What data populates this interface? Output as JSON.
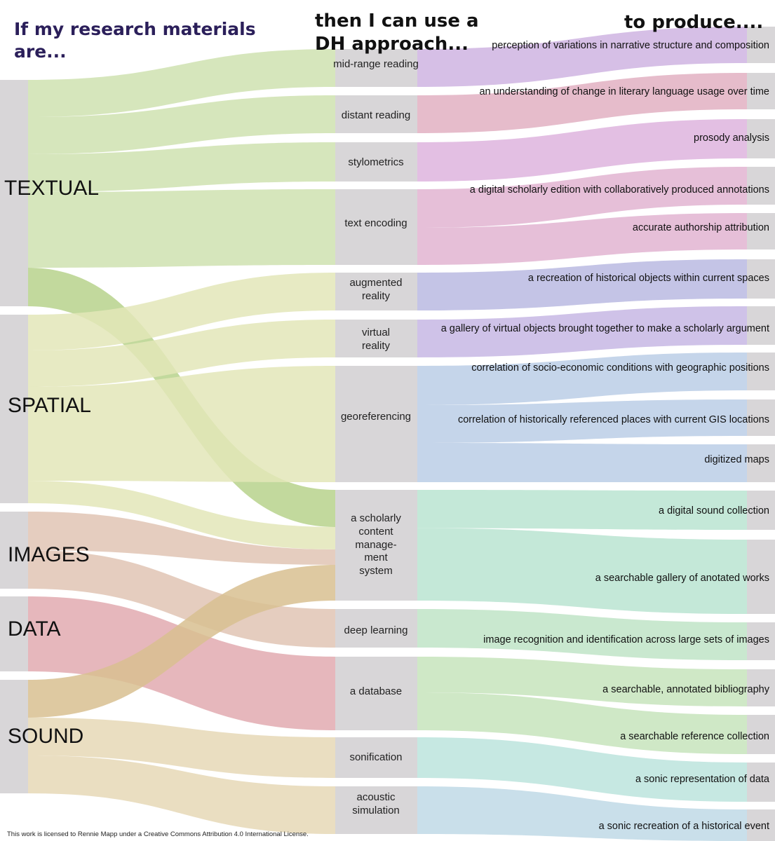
{
  "headers": {
    "left": [
      "If my research materials",
      "are..."
    ],
    "middle": [
      "then I can use a",
      "DH approach..."
    ],
    "right": "to produce....",
    "left_color": "#2b1f5a",
    "other_color": "#111111"
  },
  "footer": "This work is licensed to Rennie Mapp under a Creative Commons Attribution 4.0 International License.",
  "colors": {
    "node": "#d8d6d8",
    "textual": "#cfe2b0",
    "textual_band": "#b7d28c",
    "spatial": "#e3e6b8",
    "images": "#e0c4b4",
    "data": "#e2aab0",
    "sound": "#e6d8b6",
    "sound_band": "#d8bf90"
  },
  "chart_data": {
    "type": "sankey",
    "sources": [
      {
        "id": "textual",
        "label": "TEXTUAL"
      },
      {
        "id": "spatial",
        "label": "SPATIAL"
      },
      {
        "id": "images",
        "label": "IMAGES"
      },
      {
        "id": "data",
        "label": "DATA"
      },
      {
        "id": "sound",
        "label": "SOUND"
      }
    ],
    "approaches": [
      {
        "id": "midrange",
        "lines": [
          "mid-range reading"
        ],
        "color": "#d6bfe6"
      },
      {
        "id": "distant",
        "lines": [
          "distant reading"
        ],
        "color": "#e6bccb"
      },
      {
        "id": "stylometrics",
        "lines": [
          "stylometrics"
        ],
        "color": "#e3bfe3"
      },
      {
        "id": "textenc",
        "lines": [
          "text encoding"
        ],
        "color": "#e6bfd8"
      },
      {
        "id": "ar",
        "lines": [
          "augmented",
          "reality"
        ],
        "color": "#c4c4e6"
      },
      {
        "id": "vr",
        "lines": [
          "virtual",
          "reality"
        ],
        "color": "#cfc2e8"
      },
      {
        "id": "georef",
        "lines": [
          "georeferencing"
        ],
        "color": "#c5d5ea"
      },
      {
        "id": "scms",
        "lines": [
          "a scholarly",
          "content",
          "manage-",
          "ment",
          "system"
        ],
        "color": "#c4e8d8"
      },
      {
        "id": "deeplearning",
        "lines": [
          "deep learning"
        ],
        "color": "#c9e8cf"
      },
      {
        "id": "database",
        "lines": [
          "a database"
        ],
        "color": "#cfe8c6"
      },
      {
        "id": "sonification",
        "lines": [
          "sonification"
        ],
        "color": "#c6e8e2"
      },
      {
        "id": "acoustic",
        "lines": [
          "acoustic",
          "simulation"
        ],
        "color": "#c9dfea"
      }
    ],
    "outputs": [
      {
        "id": "o1",
        "label": "perception of variations in narrative structure and composition"
      },
      {
        "id": "o2",
        "label": "an understanding of change in literary language usage over time"
      },
      {
        "id": "o3",
        "label": "prosody analysis"
      },
      {
        "id": "o4",
        "label": "a digital scholarly edition with collaboratively produced annotations"
      },
      {
        "id": "o5",
        "label": "accurate authorship attribution"
      },
      {
        "id": "o6",
        "label": "a recreation of historical objects within current spaces"
      },
      {
        "id": "o7",
        "label": "a gallery of virtual objects brought together to make a scholarly argument"
      },
      {
        "id": "o8",
        "label": "correlation of socio-economic conditions with geographic positions"
      },
      {
        "id": "o9",
        "label": "correlation of historically referenced places with current GIS locations"
      },
      {
        "id": "o10",
        "label": "digitized maps"
      },
      {
        "id": "o11",
        "label": "a digital sound collection"
      },
      {
        "id": "o12",
        "label": "a searchable gallery of anotated works"
      },
      {
        "id": "o13",
        "label": "image recognition and identification across large sets of images"
      },
      {
        "id": "o14",
        "label": "a searchable, annotated bibliography"
      },
      {
        "id": "o15",
        "label": "a searchable reference collection"
      },
      {
        "id": "o16",
        "label": "a sonic representation of data"
      },
      {
        "id": "o17",
        "label": "a sonic recreation of a historical event"
      }
    ],
    "links_source_to_approach": [
      [
        "textual",
        "midrange"
      ],
      [
        "textual",
        "distant"
      ],
      [
        "textual",
        "stylometrics"
      ],
      [
        "textual",
        "textenc"
      ],
      [
        "textual",
        "scms"
      ],
      [
        "spatial",
        "ar"
      ],
      [
        "spatial",
        "vr"
      ],
      [
        "spatial",
        "georef"
      ],
      [
        "spatial",
        "scms"
      ],
      [
        "images",
        "scms"
      ],
      [
        "images",
        "deeplearning"
      ],
      [
        "data",
        "database"
      ],
      [
        "sound",
        "scms"
      ],
      [
        "sound",
        "sonification"
      ],
      [
        "sound",
        "acoustic"
      ]
    ],
    "links_approach_to_output": [
      [
        "midrange",
        "o1"
      ],
      [
        "distant",
        "o2"
      ],
      [
        "stylometrics",
        "o3"
      ],
      [
        "textenc",
        "o4"
      ],
      [
        "textenc",
        "o5"
      ],
      [
        "ar",
        "o6"
      ],
      [
        "vr",
        "o7"
      ],
      [
        "georef",
        "o8"
      ],
      [
        "georef",
        "o9"
      ],
      [
        "georef",
        "o10"
      ],
      [
        "scms",
        "o11"
      ],
      [
        "scms",
        "o12"
      ],
      [
        "deeplearning",
        "o13"
      ],
      [
        "database",
        "o14"
      ],
      [
        "database",
        "o15"
      ],
      [
        "sonification",
        "o16"
      ],
      [
        "acoustic",
        "o17"
      ]
    ]
  }
}
